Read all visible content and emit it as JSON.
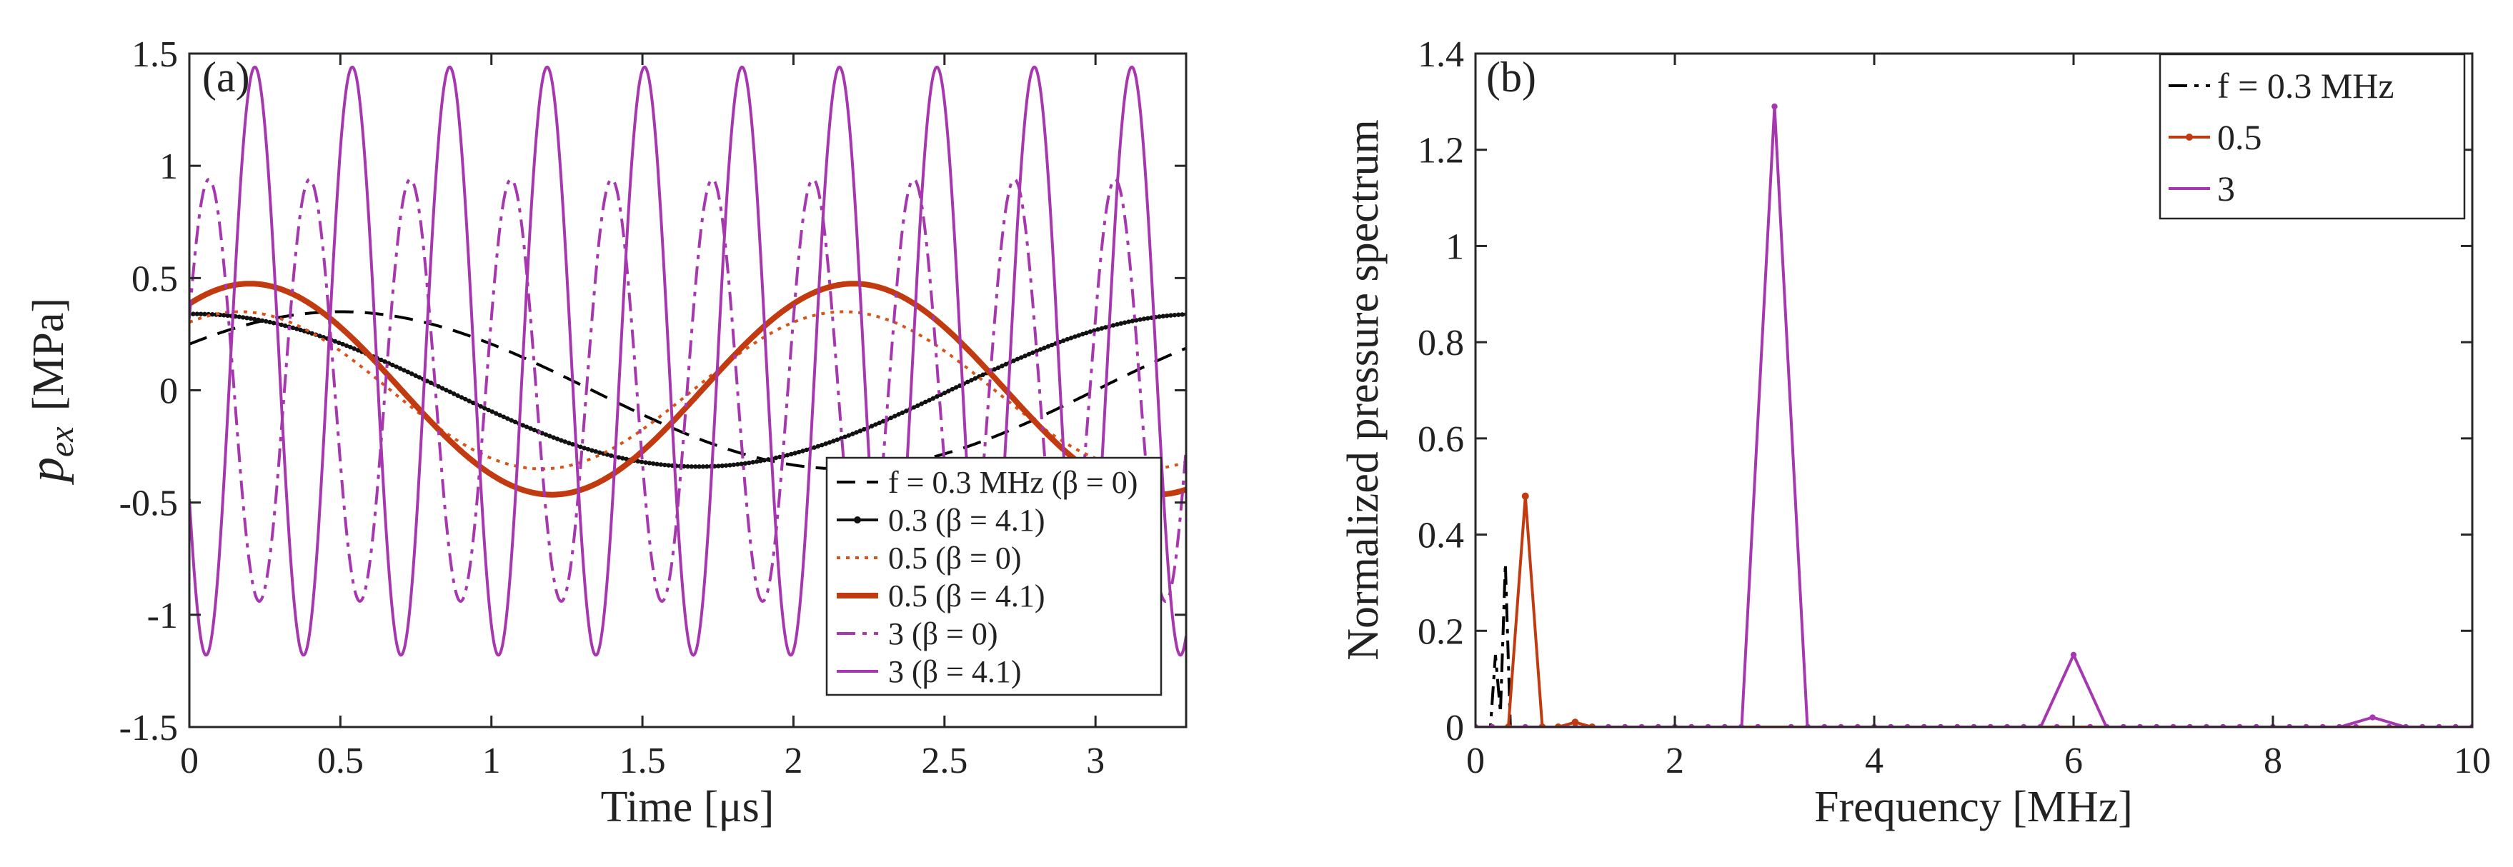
{
  "chart_data": [
    {
      "type": "line",
      "panel_label": "(a)",
      "xlabel": "Time [μs]",
      "ylabel": "p_ex [MPa]",
      "ylabel_main": "p",
      "ylabel_sub": "ex",
      "ylabel_unit": "[MPa]",
      "xlim": [
        0,
        3.3
      ],
      "ylim": [
        -1.5,
        1.5
      ],
      "x_ticks": [
        0,
        0.5,
        1,
        1.5,
        2,
        2.5,
        3
      ],
      "x_tick_labels": [
        "0",
        "0.5",
        "1",
        "1.5",
        "2",
        "2.5",
        "3"
      ],
      "y_ticks": [
        -1.5,
        -1,
        -0.5,
        0,
        0.5,
        1,
        1.5
      ],
      "y_tick_labels": [
        "-1.5",
        "-1",
        "-0.5",
        "0",
        "0.5",
        "1",
        "1.5"
      ],
      "grid": false,
      "legend_position": "bottom-right",
      "series": [
        {
          "name": "f = 0.3 MHz (β = 0)",
          "function": "sine",
          "amplitude": 0.35,
          "frequency_mhz": 0.3,
          "phase_deg": 36,
          "offset": 0,
          "color": "#000000",
          "style": "dashed"
        },
        {
          "name": "0.3 (β = 4.1)",
          "function": "sine",
          "amplitude": 0.34,
          "frequency_mhz": 0.3,
          "phase_deg": 88,
          "offset": 0,
          "color": "#111111",
          "style": "solid-markers"
        },
        {
          "name": "0.5 (β = 0)",
          "function": "sine",
          "amplitude": 0.35,
          "frequency_mhz": 0.5,
          "phase_deg": 60,
          "offset": 0,
          "color": "#d95319",
          "style": "dotted"
        },
        {
          "name": "0.5 (β = 4.1)",
          "function": "sine",
          "amplitude": 0.47,
          "frequency_mhz": 0.5,
          "phase_deg": 54,
          "offset": 0.005,
          "color": "#c23b10",
          "style": "thick"
        },
        {
          "name": "3 (β = 0)",
          "function": "sine",
          "amplitude": 0.94,
          "frequency_mhz": 3,
          "phase_deg": 20,
          "offset": 0,
          "color": "#a637ae",
          "style": "dashdot"
        },
        {
          "name": "3 (β = 4.1)",
          "function": "sine",
          "amplitude": 1.31,
          "frequency_mhz": 3.1,
          "phase_deg": 208,
          "offset": 0.13,
          "color": "#a637ae",
          "style": "solid"
        }
      ]
    },
    {
      "type": "line",
      "panel_label": "(b)",
      "xlabel": "Frequency [MHz]",
      "ylabel": "Normalized pressure spectrum",
      "xlim": [
        0,
        10
      ],
      "ylim": [
        0,
        1.4
      ],
      "x_ticks": [
        0,
        2,
        4,
        6,
        8,
        10
      ],
      "x_tick_labels": [
        "0",
        "2",
        "4",
        "6",
        "8",
        "10"
      ],
      "y_ticks": [
        0,
        0.2,
        0.4,
        0.6,
        0.8,
        1,
        1.2,
        1.4
      ],
      "y_tick_labels": [
        "0",
        "0.2",
        "0.4",
        "0.6",
        "0.8",
        "1",
        "1.2",
        "1.4"
      ],
      "grid": false,
      "legend_position": "top-right",
      "series": [
        {
          "name": "f = 0.3 MHz",
          "color": "#000000",
          "style": "dashdot",
          "x": [
            0,
            0.15,
            0.2,
            0.25,
            0.3,
            0.35,
            0.4,
            10
          ],
          "y": [
            0,
            0,
            0.15,
            0.03,
            0.34,
            0,
            0,
            0
          ]
        },
        {
          "name": "0.5",
          "color": "#c23b10",
          "style": "solid-markers",
          "x": [
            0,
            0.33,
            0.5,
            0.67,
            0.83,
            1.0,
            1.17,
            10
          ],
          "y": [
            0,
            0,
            0.48,
            0,
            0,
            0.01,
            0,
            0
          ]
        },
        {
          "name": "3",
          "color": "#a637ae",
          "style": "solid-markers",
          "x": [
            0,
            2.67,
            3.0,
            3.33,
            5.67,
            6.0,
            6.33,
            8.67,
            9.0,
            9.33,
            10
          ],
          "y": [
            0,
            0,
            1.29,
            0,
            0,
            0.15,
            0,
            0,
            0.02,
            0,
            0
          ]
        }
      ]
    }
  ]
}
